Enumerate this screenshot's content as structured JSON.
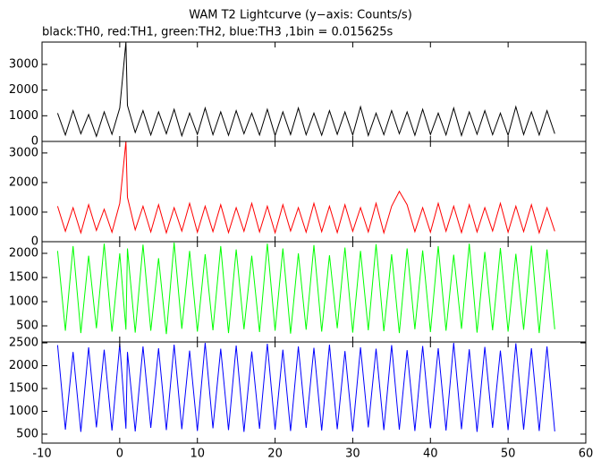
{
  "chart_data": [
    {
      "type": "line",
      "title": "WAM T2 Lightcurve (y−axis: Counts/s)",
      "subtitle": "black:TH0, red:TH1, green:TH2, blue:TH3 ,1bin = 0.015625s",
      "xlim": [
        -10,
        60
      ],
      "ylim": [
        0,
        3870
      ],
      "yticks": [
        0,
        1000,
        2000,
        3000
      ],
      "x": [
        -8,
        -7,
        -6,
        -5,
        -4,
        -3,
        -2,
        -1,
        0,
        0.8,
        1,
        2,
        3,
        4,
        5,
        6,
        7,
        8,
        9,
        10,
        11,
        12,
        13,
        14,
        15,
        16,
        17,
        18,
        19,
        20,
        21,
        22,
        23,
        24,
        25,
        26,
        27,
        28,
        29,
        30,
        31,
        32,
        33,
        34,
        35,
        36,
        37,
        38,
        39,
        40,
        41,
        42,
        43,
        44,
        45,
        46,
        47,
        48,
        49,
        50,
        51,
        52,
        53,
        54,
        55,
        56
      ],
      "series": [
        {
          "name": "TH0",
          "color": "#000000",
          "values": [
            1100,
            250,
            1200,
            300,
            1050,
            200,
            1150,
            280,
            1300,
            3870,
            1400,
            350,
            1200,
            250,
            1150,
            300,
            1250,
            220,
            1100,
            280,
            1300,
            260,
            1150,
            240,
            1200,
            300,
            1100,
            250,
            1250,
            230,
            1150,
            270,
            1300,
            260,
            1100,
            240,
            1200,
            280,
            1150,
            250,
            1350,
            230,
            1100,
            260,
            1200,
            300,
            1150,
            240,
            1250,
            270,
            1100,
            250,
            1300,
            230,
            1150,
            280,
            1200,
            260,
            1100,
            240,
            1350,
            270,
            1150,
            250,
            1200,
            300
          ]
        }
      ]
    },
    {
      "type": "line",
      "xlim": [
        -10,
        60
      ],
      "ylim": [
        0,
        3390
      ],
      "yticks": [
        0,
        1000,
        2000,
        3000
      ],
      "x": [
        -8,
        -7,
        -6,
        -5,
        -4,
        -3,
        -2,
        -1,
        0,
        0.8,
        1,
        2,
        3,
        4,
        5,
        6,
        7,
        8,
        9,
        10,
        11,
        12,
        13,
        14,
        15,
        16,
        17,
        18,
        19,
        20,
        21,
        22,
        23,
        24,
        25,
        26,
        27,
        28,
        29,
        30,
        31,
        32,
        33,
        34,
        35,
        36,
        37,
        38,
        39,
        40,
        41,
        42,
        43,
        44,
        45,
        46,
        47,
        48,
        49,
        50,
        51,
        52,
        53,
        54,
        55,
        56
      ],
      "series": [
        {
          "name": "TH1",
          "color": "#ff0000",
          "values": [
            1200,
            350,
            1150,
            300,
            1250,
            380,
            1100,
            320,
            1300,
            3390,
            1500,
            400,
            1200,
            330,
            1250,
            300,
            1150,
            360,
            1300,
            320,
            1200,
            340,
            1250,
            310,
            1150,
            350,
            1300,
            330,
            1200,
            300,
            1250,
            360,
            1150,
            320,
            1300,
            340,
            1200,
            310,
            1250,
            350,
            1150,
            330,
            1300,
            300,
            1200,
            1700,
            1250,
            340,
            1150,
            320,
            1300,
            350,
            1200,
            310,
            1250,
            330,
            1150,
            360,
            1300,
            320,
            1200,
            340,
            1250,
            300,
            1150,
            350
          ]
        }
      ]
    },
    {
      "type": "line",
      "xlim": [
        -10,
        60
      ],
      "ylim": [
        167,
        2241
      ],
      "yticks": [
        500,
        1000,
        1500,
        2000
      ],
      "x": [
        -8,
        -7,
        -6,
        -5,
        -4,
        -3,
        -2,
        -1,
        0,
        0.8,
        1,
        2,
        3,
        4,
        5,
        6,
        7,
        8,
        9,
        10,
        11,
        12,
        13,
        14,
        15,
        16,
        17,
        18,
        19,
        20,
        21,
        22,
        23,
        24,
        25,
        26,
        27,
        28,
        29,
        30,
        31,
        32,
        33,
        34,
        35,
        36,
        37,
        38,
        39,
        40,
        41,
        42,
        43,
        44,
        45,
        46,
        47,
        48,
        49,
        50,
        51,
        52,
        53,
        54,
        55,
        56
      ],
      "series": [
        {
          "name": "TH2",
          "color": "#00ff00",
          "values": [
            2050,
            400,
            2150,
            350,
            1950,
            450,
            2200,
            380,
            2000,
            420,
            2100,
            360,
            2180,
            400,
            1900,
            330,
            2220,
            440,
            2050,
            380,
            1980,
            410,
            2150,
            350,
            2080,
            430,
            1950,
            370,
            2200,
            400,
            2100,
            340,
            2000,
            420,
            2170,
            380,
            1960,
            450,
            2120,
            360,
            2050,
            410,
            2190,
            390,
            1980,
            350,
            2100,
            430,
            2060,
            370,
            2150,
            400,
            1970,
            440,
            2200,
            360,
            2030,
            410,
            2110,
            380,
            1990,
            420,
            2160,
            350,
            2080,
            430
          ]
        }
      ]
    },
    {
      "type": "line",
      "xlim": [
        -10,
        60
      ],
      "ylim": [
        304,
        2520
      ],
      "yticks": [
        500,
        1000,
        1500,
        2000,
        2500
      ],
      "xticks": [
        -10,
        0,
        10,
        20,
        30,
        40,
        50,
        60
      ],
      "x": [
        -8,
        -7,
        -6,
        -5,
        -4,
        -3,
        -2,
        -1,
        0,
        0.8,
        1,
        2,
        3,
        4,
        5,
        6,
        7,
        8,
        9,
        10,
        11,
        12,
        13,
        14,
        15,
        16,
        17,
        18,
        19,
        20,
        21,
        22,
        23,
        24,
        25,
        26,
        27,
        28,
        29,
        30,
        31,
        32,
        33,
        34,
        35,
        36,
        37,
        38,
        39,
        40,
        41,
        42,
        43,
        44,
        45,
        46,
        47,
        48,
        49,
        50,
        51,
        52,
        53,
        54,
        55,
        56
      ],
      "series": [
        {
          "name": "TH3",
          "color": "#0000ff",
          "values": [
            2450,
            600,
            2300,
            550,
            2400,
            650,
            2350,
            580,
            2480,
            620,
            2300,
            560,
            2420,
            640,
            2380,
            590,
            2460,
            610,
            2330,
            570,
            2500,
            630,
            2370,
            590,
            2440,
            550,
            2310,
            620,
            2480,
            600,
            2350,
            570,
            2420,
            640,
            2390,
            580,
            2460,
            610,
            2320,
            560,
            2400,
            650,
            2370,
            590,
            2450,
            600,
            2340,
            570,
            2430,
            630,
            2380,
            580,
            2500,
            610,
            2360,
            550,
            2410,
            640,
            2330,
            590,
            2490,
            600,
            2380,
            570,
            2420,
            560
          ]
        }
      ]
    }
  ]
}
